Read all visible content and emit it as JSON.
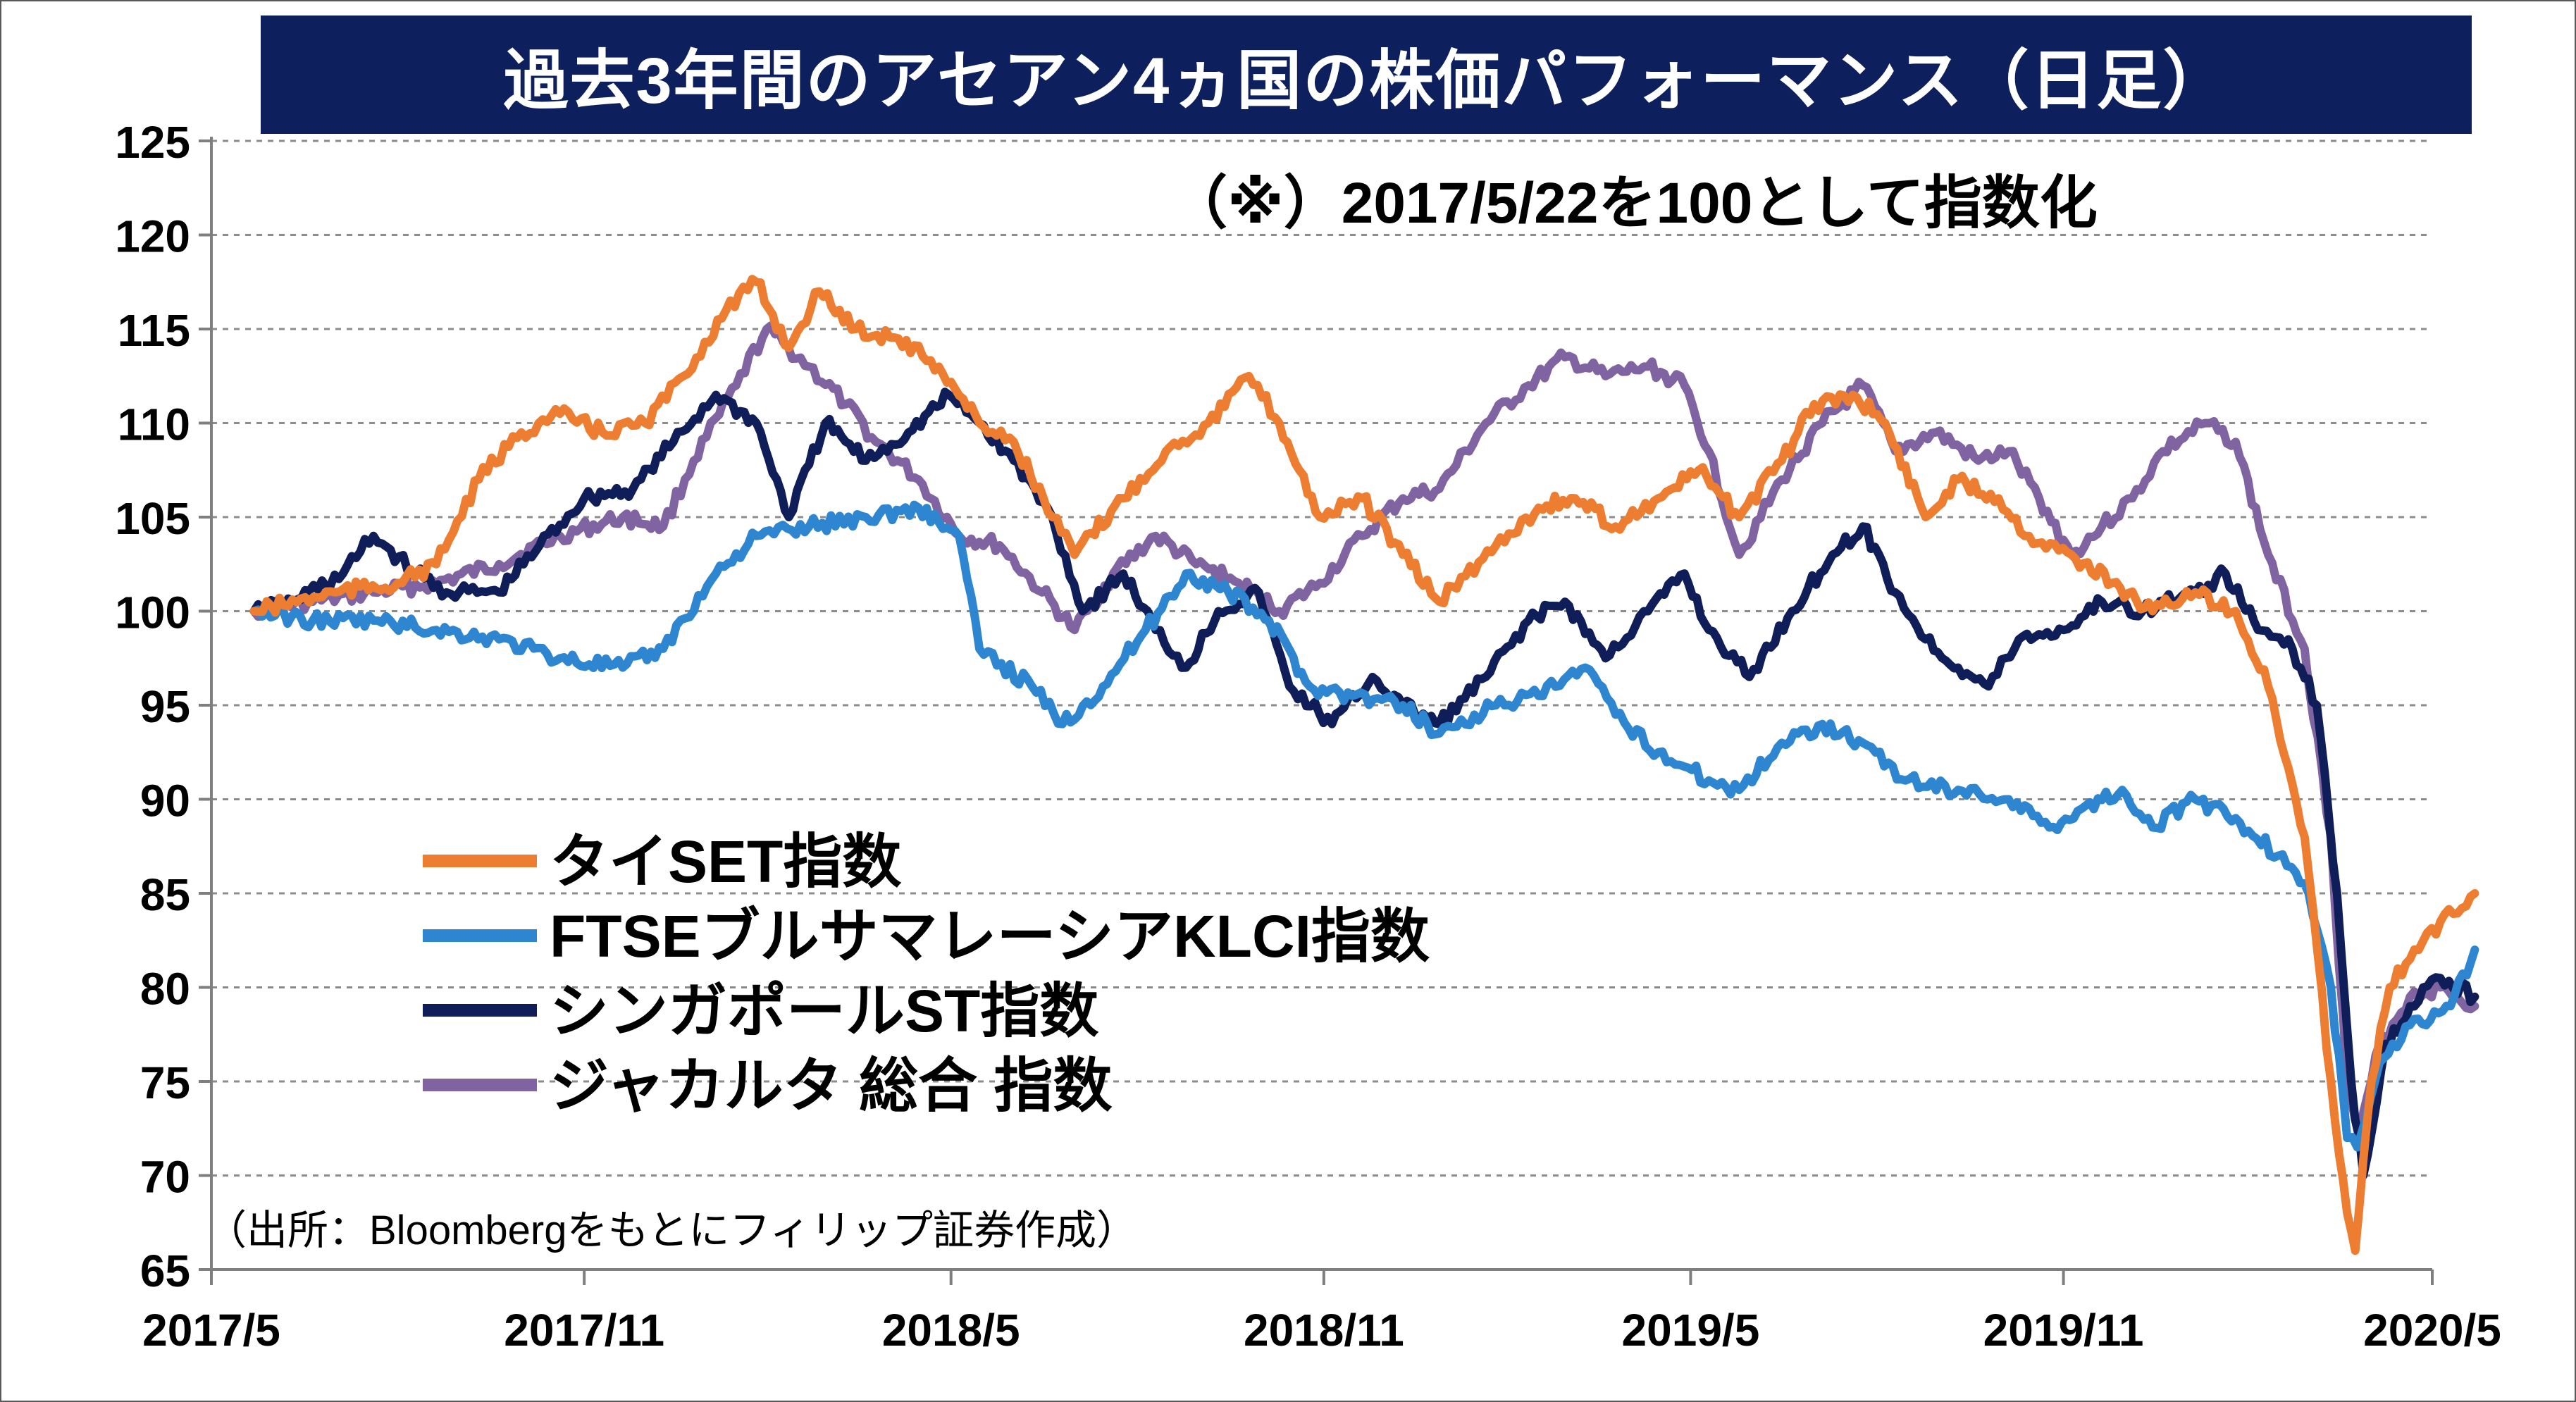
{
  "title": "過去3年間のアセアン4ヵ国の株価パフォーマンス（日足）",
  "note": "（※）2017/5/22を100として指数化",
  "source": "（出所：Bloombergをもとにフィリップ証券作成）",
  "chart_data": {
    "type": "line",
    "title": "過去3年間のアセアン4ヵ国の株価パフォーマンス（日足）",
    "xlabel": "",
    "ylabel": "",
    "ylim": [
      65,
      125
    ],
    "yticks": [
      125,
      120,
      115,
      110,
      105,
      100,
      95,
      90,
      85,
      80,
      75,
      70,
      65
    ],
    "xlim": [
      "2017/5",
      "2020/5"
    ],
    "xticks": [
      "2017/5",
      "2017/11",
      "2018/5",
      "2018/11",
      "2019/5",
      "2019/11",
      "2020/5"
    ],
    "grid": "horizontal dashed",
    "legend_position": "lower-left",
    "series": [
      {
        "name": "タイSET指数",
        "color": "#ed7d31",
        "points": [
          [
            "2017-05-22",
            100
          ],
          [
            "2017-07-01",
            101
          ],
          [
            "2017-08-01",
            101.5
          ],
          [
            "2017-08-20",
            102.5
          ],
          [
            "2017-09-10",
            107
          ],
          [
            "2017-10-01",
            109.5
          ],
          [
            "2017-10-20",
            110.5
          ],
          [
            "2017-11-10",
            109.5
          ],
          [
            "2017-12-01",
            110
          ],
          [
            "2017-12-20",
            112.5
          ],
          [
            "2018-01-10",
            116
          ],
          [
            "2018-01-25",
            117.5
          ],
          [
            "2018-02-10",
            114
          ],
          [
            "2018-02-25",
            117
          ],
          [
            "2018-03-15",
            115
          ],
          [
            "2018-04-05",
            114.5
          ],
          [
            "2018-04-25",
            113
          ],
          [
            "2018-05-15",
            110
          ],
          [
            "2018-06-01",
            109
          ],
          [
            "2018-06-20",
            105
          ],
          [
            "2018-07-01",
            103
          ],
          [
            "2018-07-25",
            106
          ],
          [
            "2018-08-15",
            108.5
          ],
          [
            "2018-09-05",
            110
          ],
          [
            "2018-09-25",
            112.5
          ],
          [
            "2018-10-10",
            110
          ],
          [
            "2018-10-30",
            105
          ],
          [
            "2018-11-20",
            106
          ],
          [
            "2018-12-10",
            103
          ],
          [
            "2018-12-28",
            100.5
          ],
          [
            "2019-01-25",
            103.5
          ],
          [
            "2019-02-15",
            105.5
          ],
          [
            "2019-03-05",
            106
          ],
          [
            "2019-03-25",
            104.5
          ],
          [
            "2019-04-15",
            106
          ],
          [
            "2019-05-05",
            107.5
          ],
          [
            "2019-05-25",
            105
          ],
          [
            "2019-06-15",
            108
          ],
          [
            "2019-07-01",
            111
          ],
          [
            "2019-07-20",
            111.5
          ],
          [
            "2019-08-05",
            110
          ],
          [
            "2019-08-25",
            105
          ],
          [
            "2019-09-10",
            107
          ],
          [
            "2019-09-30",
            106
          ],
          [
            "2019-10-15",
            104
          ],
          [
            "2019-11-05",
            103
          ],
          [
            "2019-11-25",
            101.5
          ],
          [
            "2019-12-15",
            100
          ],
          [
            "2020-01-05",
            101
          ],
          [
            "2020-01-25",
            100
          ],
          [
            "2020-02-10",
            96
          ],
          [
            "2020-02-28",
            88
          ],
          [
            "2020-03-12",
            75
          ],
          [
            "2020-03-20",
            68
          ],
          [
            "2020-03-24",
            66
          ],
          [
            "2020-04-01",
            75
          ],
          [
            "2020-04-10",
            80
          ],
          [
            "2020-04-20",
            81.5
          ],
          [
            "2020-05-05",
            83.5
          ],
          [
            "2020-05-22",
            85
          ]
        ]
      },
      {
        "name": "FTSEブルサマレーシアKLCI指数",
        "color": "#2e86d1",
        "points": [
          [
            "2017-05-22",
            100
          ],
          [
            "2017-06-20",
            99.5
          ],
          [
            "2017-07-20",
            99.5
          ],
          [
            "2017-08-20",
            99
          ],
          [
            "2017-09-20",
            98.5
          ],
          [
            "2017-10-20",
            97.5
          ],
          [
            "2017-11-20",
            97
          ],
          [
            "2017-12-10",
            98
          ],
          [
            "2018-01-05",
            102
          ],
          [
            "2018-01-25",
            104
          ],
          [
            "2018-02-20",
            104.5
          ],
          [
            "2018-03-20",
            105
          ],
          [
            "2018-04-15",
            105.5
          ],
          [
            "2018-05-05",
            104
          ],
          [
            "2018-05-15",
            98
          ],
          [
            "2018-06-10",
            96
          ],
          [
            "2018-06-25",
            94
          ],
          [
            "2018-07-15",
            96
          ],
          [
            "2018-08-05",
            99
          ],
          [
            "2018-08-25",
            102
          ],
          [
            "2018-09-15",
            101
          ],
          [
            "2018-10-05",
            99.5
          ],
          [
            "2018-10-25",
            96
          ],
          [
            "2018-11-15",
            95.5
          ],
          [
            "2018-12-10",
            95
          ],
          [
            "2018-12-28",
            93.5
          ],
          [
            "2019-01-25",
            95
          ],
          [
            "2019-02-15",
            95.5
          ],
          [
            "2019-03-10",
            97
          ],
          [
            "2019-03-25",
            94.5
          ],
          [
            "2019-04-15",
            92.5
          ],
          [
            "2019-05-10",
            91
          ],
          [
            "2019-05-25",
            90.5
          ],
          [
            "2019-06-15",
            93
          ],
          [
            "2019-07-05",
            94
          ],
          [
            "2019-07-25",
            93
          ],
          [
            "2019-08-15",
            91
          ],
          [
            "2019-09-10",
            90.5
          ],
          [
            "2019-10-05",
            90
          ],
          [
            "2019-10-25",
            88.5
          ],
          [
            "2019-11-10",
            89.5
          ],
          [
            "2019-11-30",
            90.5
          ],
          [
            "2019-12-15",
            88.5
          ],
          [
            "2020-01-05",
            90
          ],
          [
            "2020-01-25",
            89
          ],
          [
            "2020-02-15",
            87
          ],
          [
            "2020-03-01",
            85
          ],
          [
            "2020-03-12",
            80
          ],
          [
            "2020-03-20",
            72
          ],
          [
            "2020-03-25",
            71.5
          ],
          [
            "2020-04-05",
            76
          ],
          [
            "2020-04-20",
            78
          ],
          [
            "2020-05-10",
            79
          ],
          [
            "2020-05-22",
            82
          ]
        ]
      },
      {
        "name": "シンガポールST指数",
        "color": "#0f1d58",
        "points": [
          [
            "2017-05-22",
            100
          ],
          [
            "2017-06-10",
            100.5
          ],
          [
            "2017-07-05",
            102
          ],
          [
            "2017-07-20",
            104
          ],
          [
            "2017-08-10",
            102
          ],
          [
            "2017-08-25",
            101
          ],
          [
            "2017-09-20",
            101
          ],
          [
            "2017-10-10",
            103.5
          ],
          [
            "2017-11-01",
            106
          ],
          [
            "2017-11-25",
            106.5
          ],
          [
            "2017-12-15",
            109
          ],
          [
            "2018-01-05",
            111.5
          ],
          [
            "2018-01-25",
            110
          ],
          [
            "2018-02-10",
            105
          ],
          [
            "2018-02-28",
            110
          ],
          [
            "2018-03-20",
            108
          ],
          [
            "2018-04-10",
            109.5
          ],
          [
            "2018-04-30",
            111.5
          ],
          [
            "2018-05-15",
            110
          ],
          [
            "2018-06-01",
            108
          ],
          [
            "2018-06-20",
            105
          ],
          [
            "2018-07-05",
            100
          ],
          [
            "2018-07-25",
            102
          ],
          [
            "2018-08-10",
            99
          ],
          [
            "2018-08-25",
            97
          ],
          [
            "2018-09-10",
            100
          ],
          [
            "2018-09-30",
            101
          ],
          [
            "2018-10-15",
            96
          ],
          [
            "2018-11-05",
            94
          ],
          [
            "2018-11-25",
            96.5
          ],
          [
            "2018-12-10",
            95
          ],
          [
            "2018-12-28",
            94
          ],
          [
            "2019-01-20",
            96.5
          ],
          [
            "2019-02-10",
            99.5
          ],
          [
            "2019-02-28",
            100.5
          ],
          [
            "2019-03-20",
            97.5
          ],
          [
            "2019-04-10",
            100
          ],
          [
            "2019-04-28",
            102
          ],
          [
            "2019-05-10",
            99
          ],
          [
            "2019-05-30",
            96.5
          ],
          [
            "2019-06-20",
            100
          ],
          [
            "2019-07-10",
            103
          ],
          [
            "2019-07-25",
            104.5
          ],
          [
            "2019-08-10",
            101
          ],
          [
            "2019-08-25",
            98.5
          ],
          [
            "2019-09-10",
            97
          ],
          [
            "2019-09-25",
            96
          ],
          [
            "2019-10-10",
            98.5
          ],
          [
            "2019-11-01",
            99
          ],
          [
            "2019-11-20",
            100.5
          ],
          [
            "2019-12-10",
            100
          ],
          [
            "2020-01-05",
            101
          ],
          [
            "2020-01-20",
            102
          ],
          [
            "2020-02-05",
            99
          ],
          [
            "2020-02-20",
            98.5
          ],
          [
            "2020-03-05",
            95
          ],
          [
            "2020-03-15",
            85
          ],
          [
            "2020-03-22",
            75
          ],
          [
            "2020-03-28",
            70
          ],
          [
            "2020-04-08",
            77
          ],
          [
            "2020-04-20",
            79
          ],
          [
            "2020-05-05",
            80.5
          ],
          [
            "2020-05-22",
            79.5
          ]
        ]
      },
      {
        "name": "ジャカルタ 総合 指数",
        "color": "#8064a2",
        "points": [
          [
            "2017-05-22",
            100
          ],
          [
            "2017-06-20",
            100.5
          ],
          [
            "2017-07-20",
            101
          ],
          [
            "2017-08-20",
            101.5
          ],
          [
            "2017-09-20",
            102.5
          ],
          [
            "2017-10-20",
            104
          ],
          [
            "2017-11-20",
            105
          ],
          [
            "2017-12-10",
            104.5
          ],
          [
            "2017-12-25",
            108
          ],
          [
            "2018-01-15",
            112
          ],
          [
            "2018-01-30",
            115
          ],
          [
            "2018-02-20",
            113
          ],
          [
            "2018-03-10",
            111
          ],
          [
            "2018-03-25",
            109
          ],
          [
            "2018-04-15",
            107
          ],
          [
            "2018-05-05",
            104
          ],
          [
            "2018-05-25",
            103.5
          ],
          [
            "2018-06-15",
            101
          ],
          [
            "2018-07-01",
            99
          ],
          [
            "2018-07-20",
            102
          ],
          [
            "2018-08-10",
            104
          ],
          [
            "2018-08-30",
            102.5
          ],
          [
            "2018-09-20",
            101.5
          ],
          [
            "2018-10-10",
            100
          ],
          [
            "2018-10-30",
            101.5
          ],
          [
            "2018-11-20",
            104
          ],
          [
            "2018-12-10",
            106
          ],
          [
            "2018-12-28",
            106.5
          ],
          [
            "2019-01-20",
            110
          ],
          [
            "2019-02-10",
            112
          ],
          [
            "2019-02-28",
            113.5
          ],
          [
            "2019-03-20",
            112.5
          ],
          [
            "2019-04-10",
            113
          ],
          [
            "2019-04-28",
            112
          ],
          [
            "2019-05-10",
            108.5
          ],
          [
            "2019-05-25",
            103
          ],
          [
            "2019-06-15",
            107
          ],
          [
            "2019-07-05",
            110
          ],
          [
            "2019-07-25",
            112
          ],
          [
            "2019-08-10",
            108.5
          ],
          [
            "2019-08-30",
            109.5
          ],
          [
            "2019-09-20",
            108
          ],
          [
            "2019-10-05",
            108.5
          ],
          [
            "2019-10-20",
            106
          ],
          [
            "2019-11-05",
            103
          ],
          [
            "2019-11-20",
            104.5
          ],
          [
            "2019-12-05",
            106
          ],
          [
            "2019-12-20",
            108.5
          ],
          [
            "2020-01-10",
            110
          ],
          [
            "2020-01-25",
            109
          ],
          [
            "2020-02-10",
            103
          ],
          [
            "2020-02-28",
            98
          ],
          [
            "2020-03-12",
            88
          ],
          [
            "2020-03-20",
            75
          ],
          [
            "2020-03-26",
            72
          ],
          [
            "2020-04-05",
            77
          ],
          [
            "2020-04-20",
            79.5
          ],
          [
            "2020-05-05",
            80
          ],
          [
            "2020-05-22",
            79
          ]
        ]
      }
    ]
  }
}
